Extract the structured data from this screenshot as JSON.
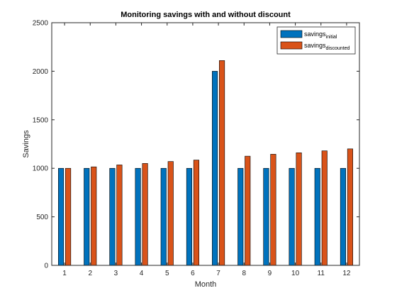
{
  "chart_data": {
    "type": "bar",
    "title": "Monitoring savings with and without discount",
    "xlabel": "Month",
    "ylabel": "Savings",
    "categories": [
      "1",
      "2",
      "3",
      "4",
      "5",
      "6",
      "7",
      "8",
      "9",
      "10",
      "11",
      "12"
    ],
    "ylim": [
      0,
      2500
    ],
    "yticks": [
      0,
      500,
      1000,
      1500,
      2000,
      2500
    ],
    "grid": false,
    "legend_position": "top-right",
    "series": [
      {
        "name": "savings_initial",
        "legend_main": "savings",
        "legend_sub": "initial",
        "color": "#0072BD",
        "values": [
          1000,
          1000,
          1000,
          1000,
          1000,
          1000,
          2000,
          1000,
          1000,
          1000,
          1000,
          1000
        ]
      },
      {
        "name": "savings_discounted",
        "legend_main": "savings",
        "legend_sub": "discounted",
        "color": "#D95319",
        "values": [
          1000,
          1015,
          1035,
          1050,
          1070,
          1085,
          2110,
          1125,
          1145,
          1160,
          1180,
          1200
        ]
      }
    ]
  }
}
